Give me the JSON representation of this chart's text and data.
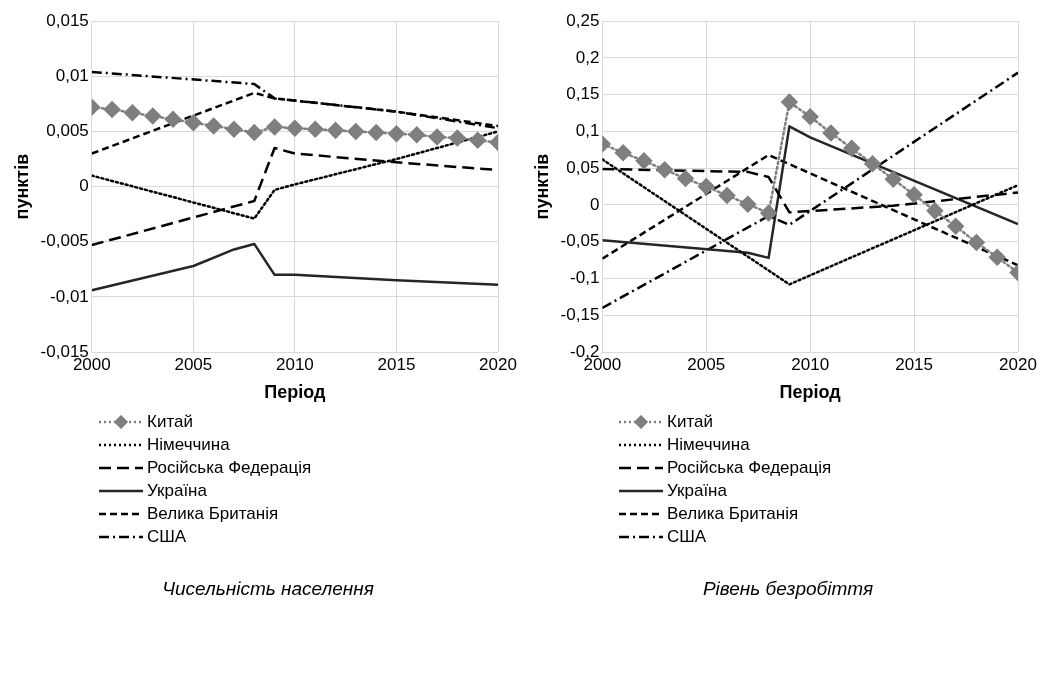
{
  "chart_data": [
    {
      "type": "line",
      "xlabel": "Період",
      "ylabel": "пунктів",
      "grid": true,
      "legend": "bottom",
      "annotations": [
        "Чисельність населення"
      ],
      "xlim": [
        2000,
        2020
      ],
      "xticks": [
        2000,
        2005,
        2010,
        2015,
        2020
      ],
      "ylim": [
        -0.015,
        0.015
      ],
      "yticks": [
        {
          "value": -0.015,
          "label": "-0,015"
        },
        {
          "value": -0.01,
          "label": "-0,01"
        },
        {
          "value": -0.005,
          "label": "-0,005"
        },
        0,
        {
          "value": 0.005,
          "label": "0,005"
        },
        {
          "value": 0.01,
          "label": "0,01"
        },
        {
          "value": 0.015,
          "label": "0,015"
        }
      ],
      "series": [
        {
          "name": "Китай",
          "color": "#7f7f7f",
          "marker": "diamond",
          "line_style": "dotted",
          "x": [
            2000,
            2001,
            2002,
            2003,
            2004,
            2005,
            2006,
            2007,
            2008,
            2009,
            2010,
            2011,
            2012,
            2013,
            2014,
            2015,
            2016,
            2017,
            2018,
            2019,
            2020
          ],
          "values": [
            0.0072,
            0.007,
            0.0067,
            0.0064,
            0.0061,
            0.0058,
            0.0055,
            0.0052,
            0.0049,
            0.0054,
            0.0053,
            0.0052,
            0.0051,
            0.005,
            0.0049,
            0.0048,
            0.0047,
            0.0045,
            0.0044,
            0.0042,
            0.004
          ]
        },
        {
          "name": "Німеччина",
          "color": "#000000",
          "marker": "none",
          "line_style": "dotted",
          "x": [
            2000,
            2008,
            2009,
            2010,
            2015,
            2020
          ],
          "values": [
            0.001,
            -0.0029,
            -0.0003,
            0.0002,
            0.0025,
            0.005
          ]
        },
        {
          "name": "Російська Федерація",
          "color": "#000000",
          "marker": "none",
          "line_style": "longdash",
          "x": [
            2000,
            2008,
            2009,
            2010,
            2015,
            2020
          ],
          "values": [
            -0.0053,
            -0.0013,
            0.0035,
            0.003,
            0.0022,
            0.0015
          ]
        },
        {
          "name": "Україна",
          "color": "#262626",
          "marker": "none",
          "line_style": "solid",
          "x": [
            2000,
            2005,
            2007,
            2008,
            2009,
            2010,
            2015,
            2020
          ],
          "values": [
            -0.0094,
            -0.0072,
            -0.0057,
            -0.0052,
            -0.008,
            -0.008,
            -0.0085,
            -0.0089
          ]
        },
        {
          "name": "Велика Британія",
          "color": "#000000",
          "marker": "none",
          "line_style": "dashed",
          "x": [
            2000,
            2008,
            2009,
            2010,
            2015,
            2020
          ],
          "values": [
            0.003,
            0.0085,
            0.008,
            0.0078,
            0.0068,
            0.0055
          ]
        },
        {
          "name": "США",
          "color": "#000000",
          "marker": "none",
          "line_style": "dashdot",
          "x": [
            2000,
            2008,
            2009,
            2010,
            2015,
            2020
          ],
          "values": [
            0.0104,
            0.0093,
            0.008,
            0.0078,
            0.0068,
            0.0053
          ]
        }
      ]
    },
    {
      "type": "line",
      "xlabel": "Період",
      "ylabel": "пунктів",
      "grid": true,
      "legend": "bottom",
      "annotations": [
        "Рівень безробіття"
      ],
      "xlim": [
        2000,
        2020
      ],
      "xticks": [
        2000,
        2005,
        2010,
        2015,
        2020
      ],
      "ylim": [
        -0.2,
        0.25
      ],
      "yticks": [
        {
          "value": -0.2,
          "label": "-0,2"
        },
        {
          "value": -0.15,
          "label": "-0,15"
        },
        {
          "value": -0.1,
          "label": "-0,1"
        },
        {
          "value": -0.05,
          "label": "-0,05"
        },
        0,
        {
          "value": 0.05,
          "label": "0,05"
        },
        {
          "value": 0.1,
          "label": "0,1"
        },
        {
          "value": 0.15,
          "label": "0,15"
        },
        {
          "value": 0.2,
          "label": "0,2"
        },
        {
          "value": 0.25,
          "label": "0,25"
        }
      ],
      "series": [
        {
          "name": "Китай",
          "color": "#7f7f7f",
          "marker": "diamond",
          "line_style": "dotted",
          "x": [
            2000,
            2001,
            2002,
            2003,
            2004,
            2005,
            2006,
            2007,
            2008,
            2009,
            2010,
            2011,
            2012,
            2013,
            2014,
            2015,
            2016,
            2017,
            2018,
            2019,
            2020
          ],
          "values": [
            0.083,
            0.071,
            0.06,
            0.048,
            0.036,
            0.025,
            0.013,
            0.001,
            -0.011,
            0.14,
            0.12,
            0.098,
            0.077,
            0.056,
            0.035,
            0.014,
            -0.008,
            -0.029,
            -0.051,
            -0.071,
            -0.092
          ]
        },
        {
          "name": "Німеччина",
          "color": "#000000",
          "marker": "none",
          "line_style": "dotted",
          "x": [
            2000,
            2009,
            2020
          ],
          "values": [
            0.062,
            -0.108,
            0.027
          ]
        },
        {
          "name": "Російська Федерація",
          "color": "#000000",
          "marker": "none",
          "line_style": "longdash",
          "x": [
            2000,
            2007,
            2008,
            2009,
            2014,
            2017,
            2020
          ],
          "values": [
            0.049,
            0.045,
            0.038,
            -0.01,
            -0.001,
            0.008,
            0.017
          ]
        },
        {
          "name": "Україна",
          "color": "#262626",
          "marker": "none",
          "line_style": "solid",
          "x": [
            2000,
            2007,
            2008,
            2009,
            2010,
            2020
          ],
          "values": [
            -0.048,
            -0.065,
            -0.072,
            0.107,
            0.092,
            -0.026
          ]
        },
        {
          "name": "Велика Британія",
          "color": "#000000",
          "marker": "none",
          "line_style": "dashed",
          "x": [
            2000,
            2008,
            2020
          ],
          "values": [
            -0.073,
            0.068,
            -0.082
          ]
        },
        {
          "name": "США",
          "color": "#000000",
          "marker": "none",
          "line_style": "dashdot",
          "x": [
            2000,
            2008,
            2009,
            2020
          ],
          "values": [
            -0.14,
            -0.015,
            -0.027,
            0.18
          ]
        }
      ]
    }
  ]
}
